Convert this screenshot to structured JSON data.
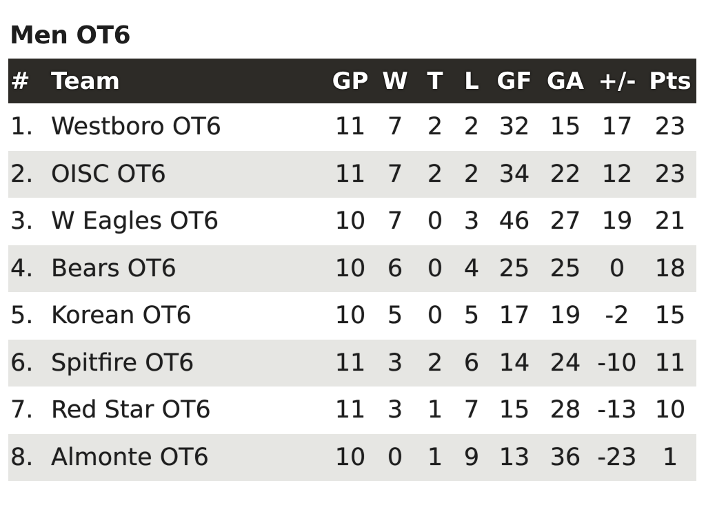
{
  "title": "Men OT6",
  "columns": [
    "#",
    "Team",
    "GP",
    "W",
    "T",
    "L",
    "GF",
    "GA",
    "+/-",
    "Pts"
  ],
  "rows": [
    [
      "1.",
      "Westboro OT6",
      "11",
      "7",
      "2",
      "2",
      "32",
      "15",
      "17",
      "23"
    ],
    [
      "2.",
      "OISC OT6",
      "11",
      "7",
      "2",
      "2",
      "34",
      "22",
      "12",
      "23"
    ],
    [
      "3.",
      "W Eagles OT6",
      "10",
      "7",
      "0",
      "3",
      "46",
      "27",
      "19",
      "21"
    ],
    [
      "4.",
      "Bears OT6",
      "10",
      "6",
      "0",
      "4",
      "25",
      "25",
      "0",
      "18"
    ],
    [
      "5.",
      "Korean OT6",
      "10",
      "5",
      "0",
      "5",
      "17",
      "19",
      "-2",
      "15"
    ],
    [
      "6.",
      "Spitfire OT6",
      "11",
      "3",
      "2",
      "6",
      "14",
      "24",
      "-10",
      "11"
    ],
    [
      "7.",
      "Red Star OT6",
      "11",
      "3",
      "1",
      "7",
      "15",
      "28",
      "-13",
      "10"
    ],
    [
      "8.",
      "Almonte OT6",
      "10",
      "0",
      "1",
      "9",
      "13",
      "36",
      "-23",
      "1"
    ]
  ],
  "colors": {
    "header_bg": "#2d2b27",
    "header_text": "#ffffff",
    "row_alt_bg": "#e6e6e3",
    "text": "#1e1e1e"
  }
}
